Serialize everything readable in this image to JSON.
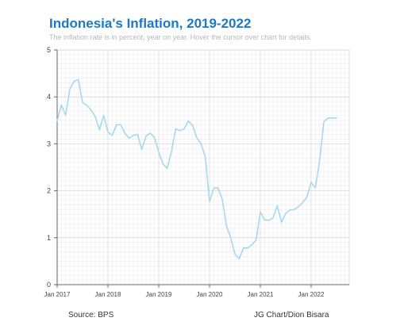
{
  "title": "Indonesia's Inflation, 2019-2022",
  "subtitle": "The inflation rate is in percent, year on year. Hover the cursor over chart for details.",
  "source": "Source: BPS",
  "credit": "JG Chart/Dion Bisara",
  "colors": {
    "title": "#1f78c1",
    "line": "#a6d8f0",
    "grid_minor": "#ececec",
    "grid_major": "#d8d8d8",
    "axis": "#666666"
  },
  "chart_data": {
    "type": "line",
    "title": "Indonesia's Inflation, 2019-2022",
    "xlabel": "",
    "ylabel": "",
    "ylim": [
      0,
      5
    ],
    "yticks": [
      "0",
      "1",
      "2",
      "3",
      "4",
      "5"
    ],
    "xticks": [
      "Jan 2017",
      "Jan 2018",
      "Jan 2019",
      "Jan 2020",
      "Jan 2021",
      "Jan 2022"
    ],
    "grid": true,
    "x": [
      "2017-01",
      "2017-02",
      "2017-03",
      "2017-04",
      "2017-05",
      "2017-06",
      "2017-07",
      "2017-08",
      "2017-09",
      "2017-10",
      "2017-11",
      "2017-12",
      "2018-01",
      "2018-02",
      "2018-03",
      "2018-04",
      "2018-05",
      "2018-06",
      "2018-07",
      "2018-08",
      "2018-09",
      "2018-10",
      "2018-11",
      "2018-12",
      "2019-01",
      "2019-02",
      "2019-03",
      "2019-04",
      "2019-05",
      "2019-06",
      "2019-07",
      "2019-08",
      "2019-09",
      "2019-10",
      "2019-11",
      "2019-12",
      "2020-01",
      "2020-02",
      "2020-03",
      "2020-04",
      "2020-05",
      "2020-06",
      "2020-07",
      "2020-08",
      "2020-09",
      "2020-10",
      "2020-11",
      "2020-12",
      "2021-01",
      "2021-02",
      "2021-03",
      "2021-04",
      "2021-05",
      "2021-06",
      "2021-07",
      "2021-08",
      "2021-09",
      "2021-10",
      "2021-11",
      "2021-12",
      "2022-01",
      "2022-02",
      "2022-03",
      "2022-04",
      "2022-05",
      "2022-06",
      "2022-07"
    ],
    "values": [
      3.49,
      3.83,
      3.61,
      4.17,
      4.33,
      4.37,
      3.88,
      3.82,
      3.72,
      3.58,
      3.3,
      3.61,
      3.25,
      3.18,
      3.4,
      3.41,
      3.23,
      3.12,
      3.18,
      3.2,
      2.88,
      3.16,
      3.23,
      3.13,
      2.82,
      2.57,
      2.48,
      2.83,
      3.32,
      3.28,
      3.32,
      3.49,
      3.39,
      3.13,
      3.0,
      2.72,
      1.77,
      2.06,
      2.06,
      1.82,
      1.25,
      1.0,
      0.65,
      0.55,
      0.78,
      0.78,
      0.85,
      0.95,
      1.55,
      1.38,
      1.37,
      1.42,
      1.68,
      1.33,
      1.52,
      1.59,
      1.6,
      1.66,
      1.75,
      1.87,
      2.18,
      2.06,
      2.64,
      3.47,
      3.55,
      3.55,
      3.55
    ]
  }
}
